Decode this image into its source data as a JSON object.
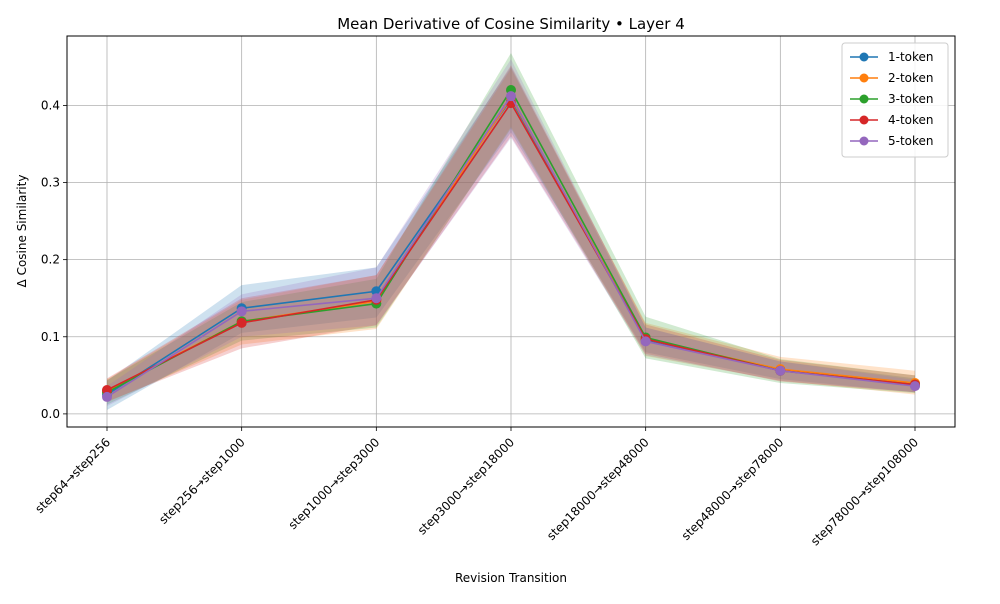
{
  "chart_data": {
    "type": "line",
    "title": "Mean Derivative of Cosine Similarity • Layer 4",
    "xlabel": "Revision Transition",
    "ylabel": "Δ Cosine Similarity",
    "categories": [
      "step64→step256",
      "step256→step1000",
      "step1000→step3000",
      "step3000→step18000",
      "step18000→step48000",
      "step48000→step78000",
      "step78000→step108000"
    ],
    "ylim": [
      -0.017,
      0.49
    ],
    "yticks": [
      0.0,
      0.1,
      0.2,
      0.3,
      0.4
    ],
    "ytick_labels": [
      "0.0",
      "0.1",
      "0.2",
      "0.3",
      "0.4"
    ],
    "grid": true,
    "legend_position": "top-right",
    "series": [
      {
        "name": "1-token",
        "color": "#1f77b4",
        "values": [
          0.025,
          0.137,
          0.159,
          0.408,
          0.096,
          0.057,
          0.037
        ],
        "lower": [
          0.005,
          0.105,
          0.125,
          0.365,
          0.08,
          0.045,
          0.028
        ],
        "upper": [
          0.043,
          0.167,
          0.19,
          0.45,
          0.112,
          0.068,
          0.046
        ]
      },
      {
        "name": "2-token",
        "color": "#ff7f0e",
        "values": [
          0.03,
          0.12,
          0.146,
          0.41,
          0.097,
          0.058,
          0.04
        ],
        "lower": [
          0.015,
          0.09,
          0.11,
          0.372,
          0.075,
          0.043,
          0.025
        ],
        "upper": [
          0.045,
          0.148,
          0.18,
          0.448,
          0.118,
          0.074,
          0.056
        ]
      },
      {
        "name": "3-token",
        "color": "#2ca02c",
        "values": [
          0.028,
          0.12,
          0.143,
          0.42,
          0.099,
          0.056,
          0.038
        ],
        "lower": [
          0.012,
          0.095,
          0.112,
          0.37,
          0.072,
          0.04,
          0.027
        ],
        "upper": [
          0.044,
          0.145,
          0.175,
          0.468,
          0.126,
          0.071,
          0.05
        ]
      },
      {
        "name": "4-token",
        "color": "#d62728",
        "values": [
          0.031,
          0.118,
          0.148,
          0.403,
          0.097,
          0.056,
          0.038
        ],
        "lower": [
          0.016,
          0.085,
          0.115,
          0.36,
          0.078,
          0.042,
          0.028
        ],
        "upper": [
          0.046,
          0.15,
          0.18,
          0.452,
          0.116,
          0.07,
          0.05
        ]
      },
      {
        "name": "5-token",
        "color": "#9467bd",
        "values": [
          0.022,
          0.133,
          0.15,
          0.412,
          0.094,
          0.056,
          0.036
        ],
        "lower": [
          0.01,
          0.1,
          0.115,
          0.358,
          0.076,
          0.043,
          0.028
        ],
        "upper": [
          0.036,
          0.155,
          0.19,
          0.46,
          0.112,
          0.068,
          0.044
        ]
      }
    ]
  }
}
